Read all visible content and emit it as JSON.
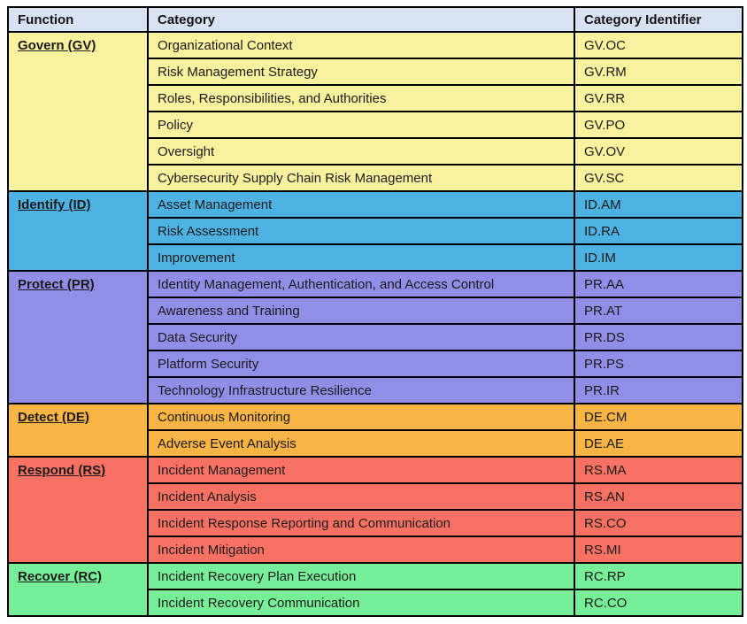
{
  "table": {
    "headers": [
      "Function",
      "Category",
      "Category Identifier"
    ],
    "header_bg": "#d9e2f3",
    "border_color": "#000000",
    "text_color": "#1b1b1b",
    "groups": [
      {
        "function": "Govern (GV)",
        "color": "#f8f19d",
        "rows": [
          {
            "category": "Organizational Context",
            "id": "GV.OC"
          },
          {
            "category": "Risk Management Strategy",
            "id": "GV.RM"
          },
          {
            "category": "Roles, Responsibilities, and Authorities",
            "id": "GV.RR"
          },
          {
            "category": "Policy",
            "id": "GV.PO"
          },
          {
            "category": "Oversight",
            "id": "GV.OV"
          },
          {
            "category": "Cybersecurity Supply Chain Risk Management",
            "id": "GV.SC"
          }
        ]
      },
      {
        "function": "Identify (ID)",
        "color": "#4db2e2",
        "rows": [
          {
            "category": "Asset Management",
            "id": "ID.AM"
          },
          {
            "category": "Risk Assessment",
            "id": "ID.RA"
          },
          {
            "category": "Improvement",
            "id": "ID.IM"
          }
        ]
      },
      {
        "function": "Protect (PR)",
        "color": "#918ee8",
        "rows": [
          {
            "category": "Identity Management, Authentication, and Access Control",
            "id": "PR.AA"
          },
          {
            "category": "Awareness and Training",
            "id": "PR.AT"
          },
          {
            "category": "Data Security",
            "id": "PR.DS"
          },
          {
            "category": "Platform Security",
            "id": "PR.PS"
          },
          {
            "category": "Technology Infrastructure Resilience",
            "id": "PR.IR"
          }
        ]
      },
      {
        "function": "Detect (DE)",
        "color": "#f8b545",
        "rows": [
          {
            "category": "Continuous Monitoring",
            "id": "DE.CM"
          },
          {
            "category": "Adverse Event Analysis",
            "id": "DE.AE"
          }
        ]
      },
      {
        "function": "Respond (RS)",
        "color": "#f87163",
        "rows": [
          {
            "category": "Incident Management",
            "id": "RS.MA"
          },
          {
            "category": "Incident Analysis",
            "id": "RS.AN"
          },
          {
            "category": "Incident Response Reporting and Communication",
            "id": "RS.CO"
          },
          {
            "category": "Incident Mitigation",
            "id": "RS.MI"
          }
        ]
      },
      {
        "function": "Recover (RC)",
        "color": "#77ef99",
        "rows": [
          {
            "category": "Incident Recovery Plan Execution",
            "id": "RC.RP"
          },
          {
            "category": "Incident Recovery Communication",
            "id": "RC.CO"
          }
        ]
      }
    ]
  }
}
